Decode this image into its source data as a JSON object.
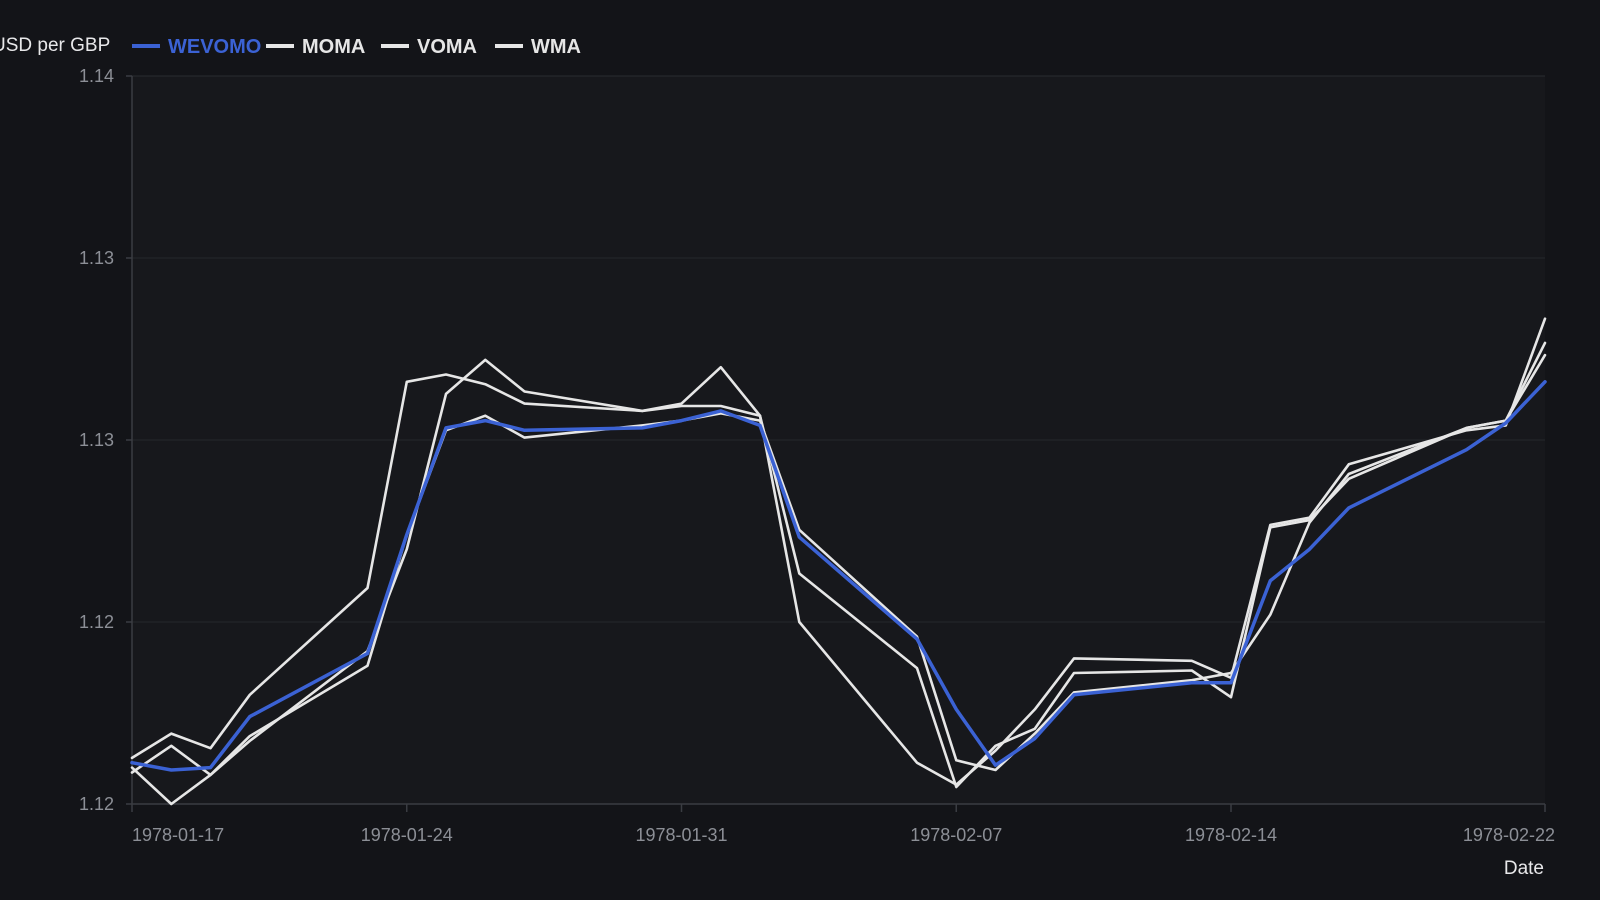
{
  "chart_data": {
    "type": "line",
    "ylabel": "USD per GBP",
    "xlabel": "Date",
    "x_dates": [
      "1978-01-17",
      "1978-01-18",
      "1978-01-19",
      "1978-01-20",
      "1978-01-23",
      "1978-01-24",
      "1978-01-25",
      "1978-01-26",
      "1978-01-27",
      "1978-01-30",
      "1978-01-31",
      "1978-02-01",
      "1978-02-02",
      "1978-02-03",
      "1978-02-06",
      "1978-02-07",
      "1978-02-08",
      "1978-02-09",
      "1978-02-10",
      "1978-02-13",
      "1978-02-14",
      "1978-02-15",
      "1978-02-16",
      "1978-02-17",
      "1978-02-20",
      "1978-02-21",
      "1978-02-22"
    ],
    "x_tick_labels": [
      "1978-01-17",
      "1978-01-24",
      "1978-01-31",
      "1978-02-07",
      "1978-02-14",
      "1978-02-22"
    ],
    "y_tick_labels": [
      "1.12",
      "1.12",
      "1.13",
      "1.13",
      "1.14"
    ],
    "ylim": [
      1.11,
      1.14
    ],
    "grid": true,
    "legend_position": "top-left",
    "colors": {
      "background": "#131418",
      "plot": "#17181c",
      "WEVOMO": "#3b62d4",
      "others": "#e6e6e6"
    },
    "series": [
      {
        "name": "WEVOMO",
        "values": [
          1.1117,
          1.1114,
          1.1115,
          1.1136,
          1.1162,
          1.1211,
          1.1255,
          1.1258,
          1.1254,
          1.1255,
          1.1258,
          1.1262,
          1.1256,
          1.121,
          1.1168,
          1.1139,
          1.1116,
          1.1127,
          1.1145,
          1.115,
          1.115,
          1.1192,
          1.1205,
          1.1222,
          1.1246,
          1.1257,
          1.1274
        ]
      },
      {
        "name": "MOMA",
        "values": [
          1.1115,
          1.11,
          1.1112,
          1.1128,
          1.1157,
          1.1211,
          1.1254,
          1.126,
          1.1251,
          1.1256,
          1.1258,
          1.1261,
          1.1258,
          1.1213,
          1.1169,
          1.1118,
          1.1114,
          1.1129,
          1.1146,
          1.1151,
          1.1154,
          1.1178,
          1.1216,
          1.1236,
          1.1255,
          1.1258,
          1.129
        ]
      },
      {
        "name": "VOMA",
        "values": [
          1.1119,
          1.1129,
          1.1123,
          1.1145,
          1.1189,
          1.1274,
          1.1277,
          1.1273,
          1.1265,
          1.1262,
          1.1264,
          1.1264,
          1.126,
          1.1195,
          1.1156,
          1.1107,
          1.1124,
          1.1131,
          1.1154,
          1.1155,
          1.1144,
          1.1214,
          1.1217,
          1.1234,
          1.1255,
          1.1258,
          1.1285
        ]
      },
      {
        "name": "WMA",
        "values": [
          1.1113,
          1.1124,
          1.1112,
          1.1126,
          1.1163,
          1.1205,
          1.1269,
          1.1283,
          1.127,
          1.1262,
          1.1265,
          1.128,
          1.126,
          1.1175,
          1.1117,
          1.1108,
          1.1122,
          1.1139,
          1.116,
          1.1159,
          1.1152,
          1.1215,
          1.1218,
          1.124,
          1.1254,
          1.1256,
          1.13
        ]
      }
    ]
  }
}
